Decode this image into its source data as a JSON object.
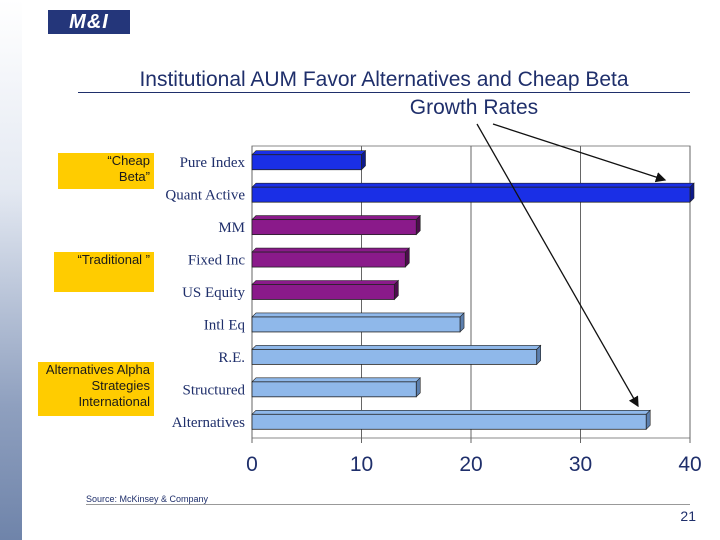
{
  "logo_text": "M&I",
  "title_line1": "Institutional AUM Favor Alternatives and Cheap Beta",
  "title_line2": "Growth Rates",
  "groups": [
    {
      "label": "“Cheap Beta”"
    },
    {
      "label": "“Traditional ”"
    },
    {
      "label": "Alternatives Alpha Strategies International"
    }
  ],
  "source": "Source: McKinsey & Company",
  "page_number": "21",
  "colors": {
    "dark_blue": "#1a2fe6",
    "purple": "#8a1a8a",
    "light_blue": "#8fb8ea",
    "band": "#ffcc00"
  },
  "chart_data": {
    "type": "bar",
    "orientation": "horizontal",
    "categories": [
      "Pure Index",
      "Quant Active",
      "MM",
      "Fixed Inc",
      "US Equity",
      "Intl Eq",
      "R.E.",
      "Structured",
      "Alternatives"
    ],
    "values": [
      10,
      40,
      15,
      14,
      13,
      19,
      26,
      15,
      36
    ],
    "bar_groups": [
      "cheap",
      "cheap",
      "traditional",
      "traditional",
      "traditional",
      "alt",
      "alt",
      "alt",
      "alt"
    ],
    "xlim": [
      0,
      40
    ],
    "xticks": [
      "0",
      "10",
      "20",
      "30",
      "40"
    ],
    "grid": true
  }
}
